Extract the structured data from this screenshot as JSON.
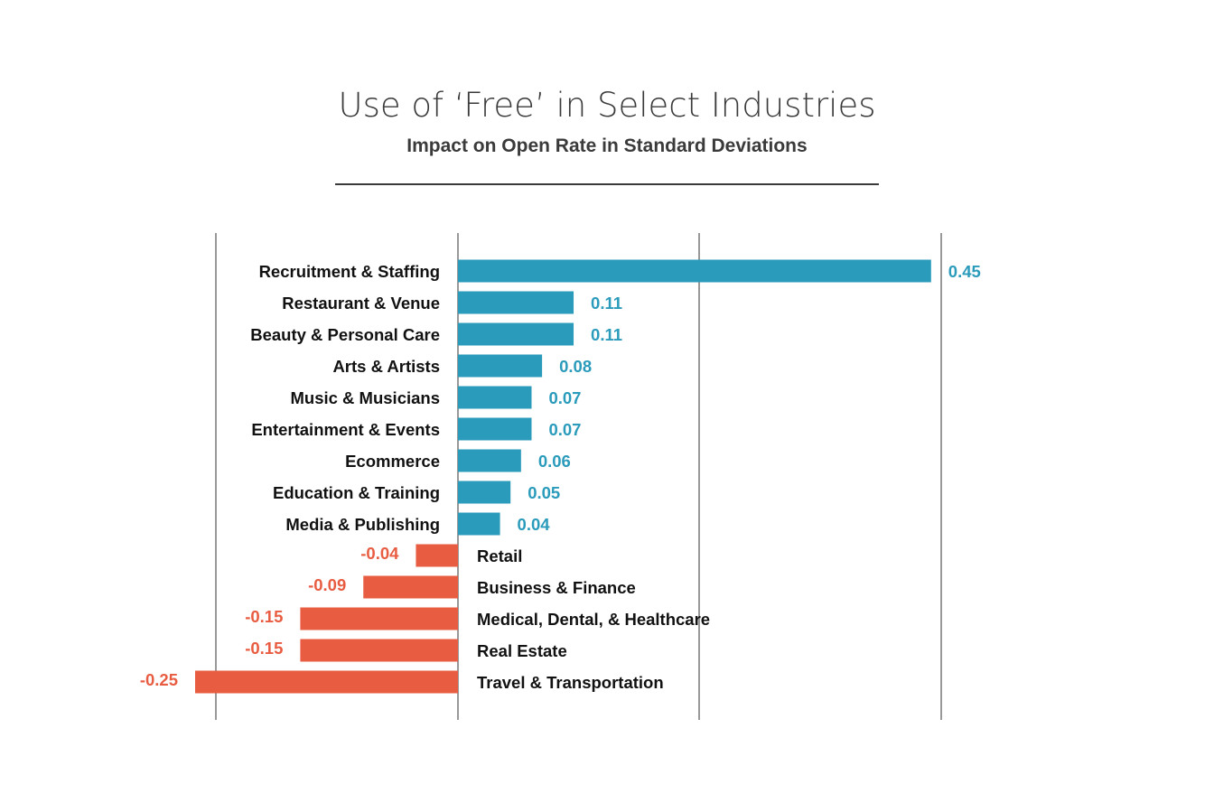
{
  "chart_data": {
    "type": "bar",
    "orientation": "horizontal",
    "title": "Use of ‘Free’ in Select Industries",
    "subtitle": "Impact on Open Rate in Standard Deviations",
    "xlabel": "",
    "ylabel": "",
    "xlim": [
      -0.25,
      0.45
    ],
    "grid": true,
    "categories": [
      "Recruitment & Staffing",
      "Restaurant & Venue",
      "Beauty & Personal Care",
      "Arts & Artists",
      "Music & Musicians",
      "Entertainment & Events",
      "Ecommerce",
      "Education & Training",
      "Media & Publishing",
      "Retail",
      "Business & Finance",
      "Medical, Dental, & Healthcare",
      "Real Estate",
      "Travel & Transportation"
    ],
    "values": [
      0.45,
      0.11,
      0.11,
      0.08,
      0.07,
      0.07,
      0.06,
      0.05,
      0.04,
      -0.04,
      -0.09,
      -0.15,
      -0.15,
      -0.25
    ],
    "value_labels": [
      "0.45",
      "0.11",
      "0.11",
      "0.08",
      "0.07",
      "0.07",
      "0.06",
      "0.05",
      "0.04",
      "-0.04",
      "-0.09",
      "-0.15",
      "-0.15",
      "-0.25"
    ],
    "colors": {
      "positive": "#2b9bbb",
      "negative": "#e85c41"
    }
  }
}
